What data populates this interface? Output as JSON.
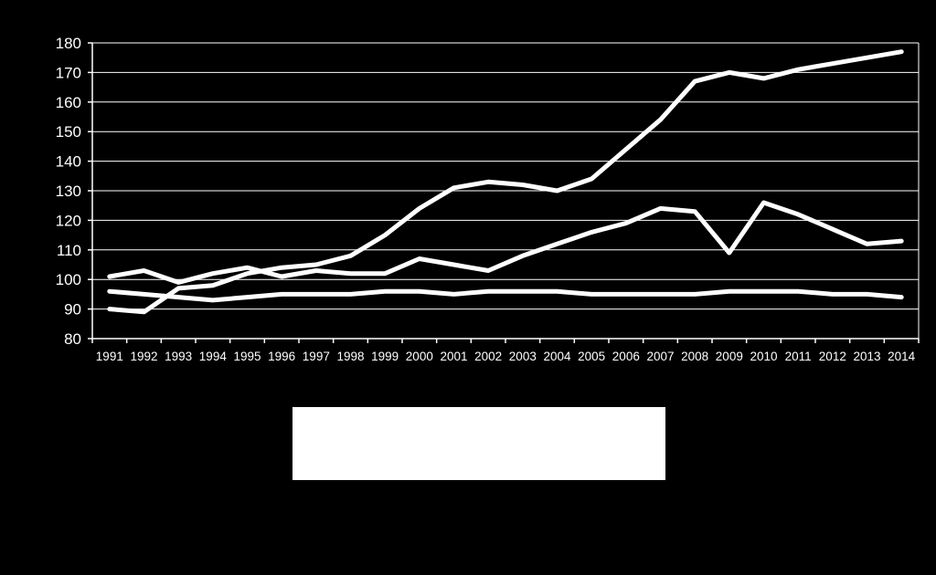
{
  "colors": {
    "background": "#000000",
    "lines": "#ffffff",
    "grid": "#ffffff",
    "axis": "#ffffff",
    "legend_box": "#ffffff"
  },
  "chart_data": {
    "type": "line",
    "title": "",
    "xlabel": "",
    "ylabel": "",
    "categories": [
      "1991",
      "1992",
      "1993",
      "1994",
      "1995",
      "1996",
      "1997",
      "1998",
      "1999",
      "2000",
      "2001",
      "2002",
      "2003",
      "2004",
      "2005",
      "2006",
      "2007",
      "2008",
      "2009",
      "2010",
      "2011",
      "2012",
      "2013",
      "2014"
    ],
    "ylim": [
      80,
      180
    ],
    "yticks": [
      80,
      90,
      100,
      110,
      120,
      130,
      140,
      150,
      160,
      170,
      180
    ],
    "grid": true,
    "legend": "bottom (legend labels not visible)",
    "series": [
      {
        "values": [
          90,
          89,
          97,
          98,
          102,
          104,
          105,
          108,
          115,
          124,
          131,
          133,
          132,
          130,
          134,
          144,
          154,
          167,
          170,
          168,
          171,
          173,
          175,
          177
        ]
      },
      {
        "values": [
          101,
          103,
          99,
          102,
          104,
          101,
          103,
          102,
          102,
          107,
          105,
          103,
          108,
          112,
          116,
          119,
          124,
          123,
          109,
          126,
          122,
          117,
          112,
          113
        ]
      },
      {
        "values": [
          96,
          95,
          94,
          93,
          94,
          95,
          95,
          95,
          96,
          96,
          95,
          96,
          96,
          96,
          95,
          95,
          95,
          95,
          96,
          96,
          96,
          95,
          95,
          94
        ]
      }
    ]
  }
}
